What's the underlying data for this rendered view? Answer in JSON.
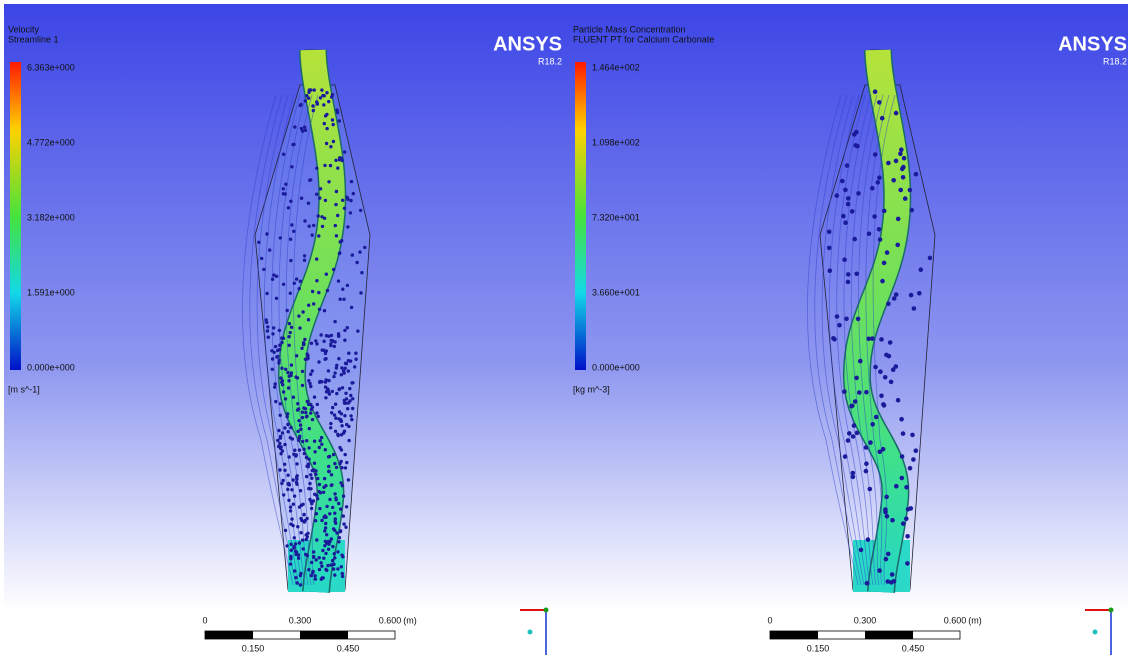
{
  "panels": [
    {
      "title": "Velocity",
      "subtitle": "Streamline 1",
      "legend": {
        "labels": [
          "6.363e+000",
          "4.772e+000",
          "3.182e+000",
          "1.591e+000",
          "0.000e+000"
        ],
        "unit": "[m s^-1]"
      },
      "brand": "ANSYS",
      "version": "R18.2",
      "scale": {
        "top": [
          "0",
          "0.300",
          "0.600",
          "(m)"
        ],
        "bottom": [
          "0.150",
          "0.450"
        ]
      }
    },
    {
      "title": "Particle Mass Concentration",
      "subtitle": "FLUENT PT for Calcium Carbonate",
      "legend": {
        "labels": [
          "1.464e+002",
          "1.098e+002",
          "7.320e+001",
          "3.660e+001",
          "0.000e+000"
        ],
        "unit": "[kg m^-3]"
      },
      "brand": "ANSYS",
      "version": "R18.2",
      "scale": {
        "top": [
          "0",
          "0.300",
          "0.600",
          "(m)"
        ],
        "bottom": [
          "0.150",
          "0.450"
        ]
      }
    }
  ]
}
